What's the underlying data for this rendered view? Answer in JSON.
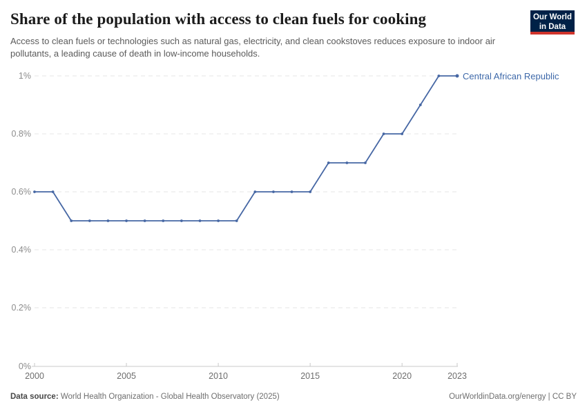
{
  "header": {
    "title": "Share of the population with access to clean fuels for cooking",
    "subtitle": "Access to clean fuels or technologies such as natural gas, electricity, and clean cookstoves reduces exposure to indoor air pollutants, a leading cause of death in low-income households.",
    "logo": {
      "line1": "Our World",
      "line2": "in Data"
    }
  },
  "chart_data": {
    "type": "line",
    "title": "Share of the population with access to clean fuels for cooking",
    "x": [
      2000,
      2001,
      2002,
      2003,
      2004,
      2005,
      2006,
      2007,
      2008,
      2009,
      2010,
      2011,
      2012,
      2013,
      2014,
      2015,
      2016,
      2017,
      2018,
      2019,
      2020,
      2021,
      2022,
      2023
    ],
    "series": [
      {
        "name": "Central African Republic",
        "values": [
          0.6,
          0.6,
          0.5,
          0.5,
          0.5,
          0.5,
          0.5,
          0.5,
          0.5,
          0.5,
          0.5,
          0.5,
          0.6,
          0.6,
          0.6,
          0.6,
          0.7,
          0.7,
          0.7,
          0.8,
          0.8,
          0.9,
          1,
          1
        ]
      }
    ],
    "xlabel": "",
    "ylabel": "",
    "xlim": [
      2000,
      2023
    ],
    "ylim": [
      0,
      1
    ],
    "y_ticks": [
      {
        "value": 0,
        "label": "0%"
      },
      {
        "value": 0.2,
        "label": "0.2%"
      },
      {
        "value": 0.4,
        "label": "0.4%"
      },
      {
        "value": 0.6,
        "label": "0.6%"
      },
      {
        "value": 0.8,
        "label": "0.8%"
      },
      {
        "value": 1,
        "label": "1%"
      }
    ],
    "x_ticks": [
      {
        "value": 2000,
        "label": "2000"
      },
      {
        "value": 2005,
        "label": "2005"
      },
      {
        "value": 2010,
        "label": "2010"
      },
      {
        "value": 2015,
        "label": "2015"
      },
      {
        "value": 2020,
        "label": "2020"
      },
      {
        "value": 2023,
        "label": "2023"
      }
    ],
    "grid": "horizontal-dashed",
    "legend_position": "end-of-line-label"
  },
  "footer": {
    "data_source_label": "Data source:",
    "data_source_text": "World Health Organization - Global Health Observatory (2025)",
    "attribution": "OurWorldinData.org/energy | CC BY"
  },
  "colors": {
    "line": "#4667a4",
    "entity_label": "#3d68a9",
    "gridline": "#e4e4e4",
    "axis_line": "#c9c9c9",
    "y_tick_text": "#8c8c8c",
    "x_tick_text": "#6d6d6d",
    "logo_bg": "#002147",
    "logo_red": "#d0342c"
  }
}
